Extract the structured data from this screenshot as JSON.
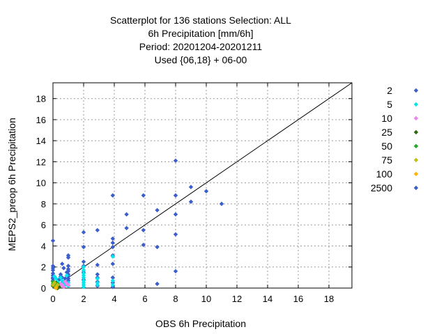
{
  "chart_data": {
    "type": "scatter",
    "title_lines": [
      "Scatterplot for  136 stations Selection: ALL",
      "6h Precipitation [mm/6h]",
      "Period: 20201204-20201211",
      "Used {06,18} + 06-00"
    ],
    "xlabel": "OBS 6h Precipitation",
    "ylabel": "MEPS2_preop 6h Precipitation",
    "xlim": [
      0,
      19.5
    ],
    "ylim": [
      0,
      19.5
    ],
    "xticks": [
      "0",
      "2",
      "4",
      "6",
      "8",
      "10",
      "12",
      "14",
      "16",
      "18"
    ],
    "yticks": [
      "0",
      "2",
      "4",
      "6",
      "8",
      "10",
      "12",
      "14",
      "16",
      "18"
    ],
    "grid": true,
    "diagonal": true,
    "legend_position": "right",
    "series": [
      {
        "name": "2",
        "color": "#3a5fcd",
        "points": [
          [
            0,
            4.5
          ],
          [
            0,
            2.1
          ],
          [
            0,
            1.9
          ],
          [
            0,
            1.7
          ],
          [
            0,
            1.4
          ],
          [
            0,
            1.2
          ],
          [
            0,
            1.0
          ],
          [
            0,
            0.9
          ],
          [
            0,
            0.7
          ],
          [
            0.1,
            0.5
          ],
          [
            0.2,
            0.3
          ],
          [
            0.3,
            0.2
          ],
          [
            0.4,
            0.8
          ],
          [
            0.5,
            1.1
          ],
          [
            0.5,
            1.3
          ],
          [
            0.6,
            1.0
          ],
          [
            0.6,
            2.3
          ],
          [
            0.7,
            1.9
          ],
          [
            0.8,
            0.9
          ],
          [
            0.9,
            1.5
          ],
          [
            1,
            3.1
          ],
          [
            1,
            2.9
          ],
          [
            1,
            2.1
          ],
          [
            1,
            1.8
          ],
          [
            1,
            1.6
          ],
          [
            1,
            1.3
          ],
          [
            1,
            1.1
          ],
          [
            1,
            0.9
          ],
          [
            1,
            0.7
          ],
          [
            2,
            5.3
          ],
          [
            2,
            3.9
          ],
          [
            2,
            2.5
          ],
          [
            2,
            2.1
          ],
          [
            2,
            1.5
          ],
          [
            2,
            0.8
          ],
          [
            2.9,
            5.5
          ],
          [
            2.9,
            2.2
          ],
          [
            2.9,
            1.3
          ],
          [
            2.9,
            1.0
          ],
          [
            2.9,
            0.6
          ],
          [
            2.9,
            0.2
          ],
          [
            3.9,
            8.8
          ],
          [
            3.9,
            4.7
          ],
          [
            3.9,
            4.3
          ],
          [
            3.9,
            3.9
          ],
          [
            3.9,
            3.1
          ],
          [
            3.9,
            2.3
          ],
          [
            3.9,
            1.0
          ],
          [
            3.9,
            0.5
          ],
          [
            3.9,
            0.1
          ],
          [
            4.8,
            7.0
          ],
          [
            4.8,
            5.7
          ],
          [
            5.9,
            8.8
          ],
          [
            5.9,
            5.5
          ],
          [
            5.9,
            4.1
          ],
          [
            6.8,
            7.4
          ],
          [
            6.8,
            3.9
          ],
          [
            6.8,
            0.4
          ],
          [
            8,
            12.1
          ],
          [
            8,
            8.8
          ],
          [
            8,
            7.0
          ],
          [
            8,
            5.1
          ],
          [
            8,
            1.6
          ],
          [
            9,
            9.6
          ],
          [
            9,
            8.2
          ],
          [
            10,
            9.2
          ],
          [
            11,
            8.0
          ]
        ]
      },
      {
        "name": "5",
        "color": "#00e5ee",
        "points": [
          [
            0.1,
            1.1
          ],
          [
            0.2,
            0.9
          ],
          [
            0.3,
            0.6
          ],
          [
            0.4,
            0.4
          ],
          [
            0.5,
            1.0
          ],
          [
            0.6,
            0.7
          ],
          [
            0.7,
            0.5
          ],
          [
            0.8,
            0.3
          ],
          [
            0.9,
            1.2
          ],
          [
            1,
            0.5
          ],
          [
            1,
            0.2
          ],
          [
            2,
            2.0
          ],
          [
            2,
            1.7
          ],
          [
            2,
            1.4
          ],
          [
            2,
            1.2
          ],
          [
            2,
            1.0
          ],
          [
            2,
            0.7
          ],
          [
            2,
            0.5
          ],
          [
            2,
            0.3
          ],
          [
            2,
            0.1
          ],
          [
            2.9,
            0.9
          ],
          [
            2.9,
            0.5
          ],
          [
            2.9,
            0.3
          ],
          [
            3.9,
            3.0
          ],
          [
            3.9,
            0.7
          ],
          [
            3.9,
            0.3
          ]
        ]
      },
      {
        "name": "10",
        "color": "#ee82ee",
        "points": [
          [
            0.4,
            0.2
          ],
          [
            0.5,
            0.4
          ],
          [
            0.6,
            0.3
          ],
          [
            0.7,
            0.1
          ],
          [
            0.8,
            0.6
          ],
          [
            0.9,
            0.4
          ],
          [
            1,
            0.3
          ]
        ]
      },
      {
        "name": "25",
        "color": "#2e6b0e",
        "points": [
          [
            0,
            0.2
          ],
          [
            0.1,
            0.1
          ],
          [
            0.2,
            0.5
          ],
          [
            0.3,
            0.0
          ],
          [
            0.4,
            0.1
          ]
        ]
      },
      {
        "name": "50",
        "color": "#22aa22",
        "points": [
          [
            0,
            0.6
          ],
          [
            0,
            0.4
          ],
          [
            0.1,
            0.3
          ],
          [
            0.2,
            0.2
          ],
          [
            0.3,
            0.4
          ]
        ]
      },
      {
        "name": "75",
        "color": "#bfbf1a",
        "points": [
          [
            0,
            0.3
          ],
          [
            0.1,
            0.5
          ],
          [
            0.2,
            0.1
          ],
          [
            0.3,
            0.3
          ]
        ]
      },
      {
        "name": "100",
        "color": "#ffb300",
        "points": [
          [
            0.2,
            0.0
          ]
        ]
      },
      {
        "name": "2500",
        "color": "#3a5fcd",
        "points": []
      }
    ]
  }
}
